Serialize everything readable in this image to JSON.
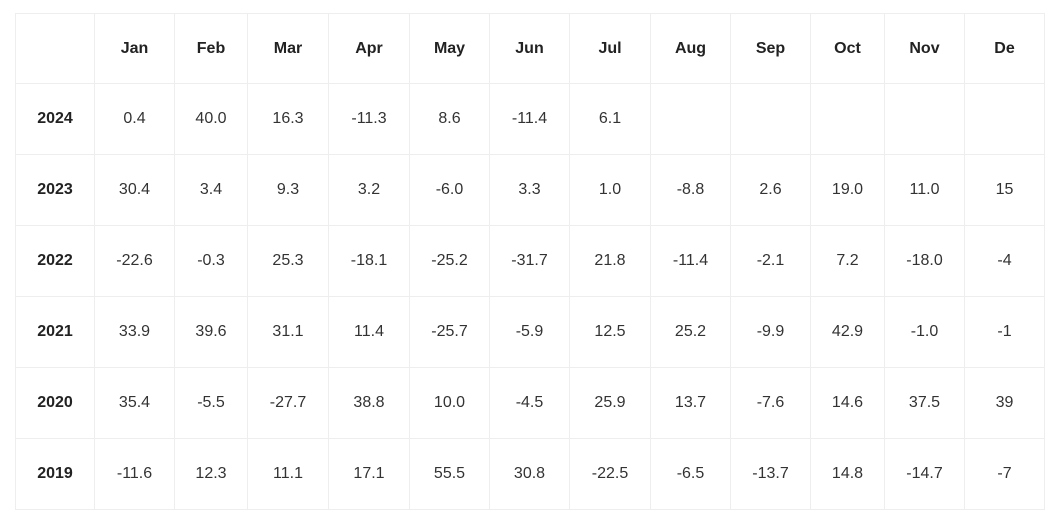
{
  "table": {
    "months": [
      "Jan",
      "Feb",
      "Mar",
      "Apr",
      "May",
      "Jun",
      "Jul",
      "Aug",
      "Sep",
      "Oct",
      "Nov",
      "De"
    ],
    "rows": [
      {
        "year": "2024",
        "values": [
          "0.4",
          "40.0",
          "16.3",
          "-11.3",
          "8.6",
          "-11.4",
          "6.1"
        ]
      },
      {
        "year": "2023",
        "values": [
          "30.4",
          "3.4",
          "9.3",
          "3.2",
          "-6.0",
          "3.3",
          "1.0",
          "-8.8",
          "2.6",
          "19.0",
          "11.0",
          "15"
        ]
      },
      {
        "year": "2022",
        "values": [
          "-22.6",
          "-0.3",
          "25.3",
          "-18.1",
          "-25.2",
          "-31.7",
          "21.8",
          "-11.4",
          "-2.1",
          "7.2",
          "-18.0",
          "-4"
        ]
      },
      {
        "year": "2021",
        "values": [
          "33.9",
          "39.6",
          "31.1",
          "11.4",
          "-25.7",
          "-5.9",
          "12.5",
          "25.2",
          "-9.9",
          "42.9",
          "-1.0",
          "-1"
        ]
      },
      {
        "year": "2020",
        "values": [
          "35.4",
          "-5.5",
          "-27.7",
          "38.8",
          "10.0",
          "-4.5",
          "25.9",
          "13.7",
          "-7.6",
          "14.6",
          "37.5",
          "39"
        ]
      },
      {
        "year": "2019",
        "values": [
          "-11.6",
          "12.3",
          "11.1",
          "17.1",
          "55.5",
          "30.8",
          "-22.5",
          "-6.5",
          "-13.7",
          "14.8",
          "-14.7",
          "-7"
        ]
      }
    ]
  }
}
